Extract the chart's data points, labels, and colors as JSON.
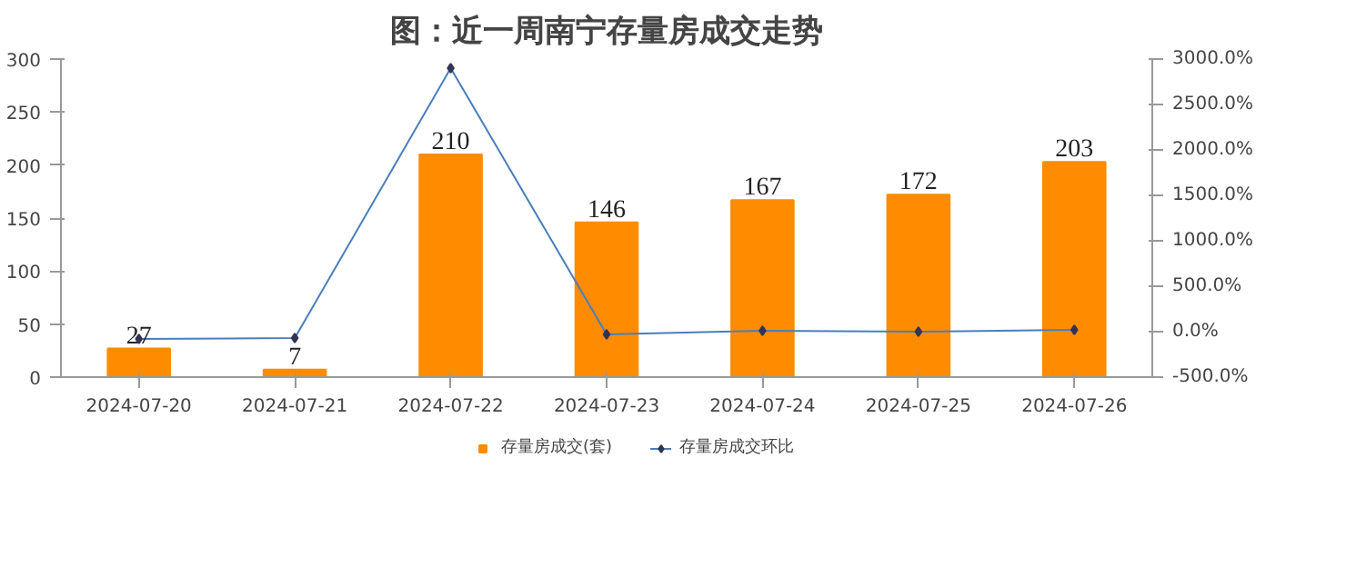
{
  "chart_data": {
    "type": "bar",
    "title": "图：近一周南宁存量房成交走势",
    "categories": [
      "2024-07-20",
      "2024-07-21",
      "2024-07-22",
      "2024-07-23",
      "2024-07-24",
      "2024-07-25",
      "2024-07-26"
    ],
    "series": [
      {
        "name": "存量房成交(套)",
        "color": "#ff8c00",
        "values": [
          27,
          7,
          210,
          146,
          167,
          172,
          203
        ],
        "value_labels": [
          "27",
          "7",
          "210",
          "146",
          "167",
          "172",
          "203"
        ]
      },
      {
        "name": "存量房成交环比",
        "type": "line",
        "axis": "y2",
        "color": "#4a7ebb",
        "marker": "diamond",
        "values": [
          -80,
          -70,
          2900,
          -30,
          10,
          0,
          20
        ]
      }
    ],
    "ylim": [
      0,
      300
    ],
    "yticks": [
      0,
      50,
      100,
      150,
      200,
      250,
      300
    ],
    "y2lim": [
      -500,
      3000
    ],
    "y2ticks": [
      {
        "value": -500,
        "label": "-500.0%"
      },
      {
        "value": 0,
        "label": "0.0%"
      },
      {
        "value": 500,
        "label": "500.0%"
      },
      {
        "value": 1000,
        "label": "1000.0%"
      },
      {
        "value": 1500,
        "label": "1500.0%"
      },
      {
        "value": 2000,
        "label": "2000.0%"
      },
      {
        "value": 2500,
        "label": "2500.0%"
      },
      {
        "value": 3000,
        "label": "3000.0%"
      }
    ],
    "legend": "bottom"
  }
}
